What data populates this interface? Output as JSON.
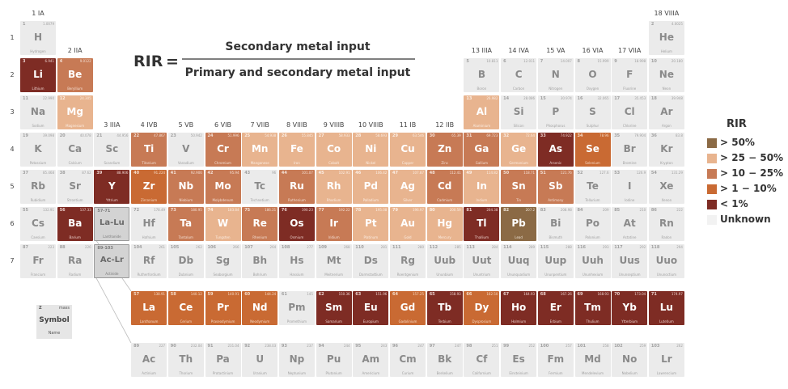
{
  "formula": {
    "lhs": "RIR",
    "eq": "=",
    "numerator": "Secondary metal input",
    "denominator": "Primary and secondary metal input"
  },
  "groups": [
    "1 IA",
    "2 IIA",
    "3 IIIA",
    "4 IVB",
    "5 VB",
    "6 VIB",
    "7 VIIB",
    "8 VIIIB",
    "9 VIIIB",
    "10 VIIIB",
    "11 IB",
    "12 IIB",
    "13 IIIA",
    "14 IVA",
    "15 VA",
    "16 VIA",
    "17 VIIA",
    "18 VIIIA"
  ],
  "periods": [
    "1",
    "2",
    "3",
    "4",
    "5",
    "6",
    "7"
  ],
  "legend": {
    "title": "RIR",
    "items": [
      {
        "label": "> 50%",
        "color": "#8b6a45"
      },
      {
        "label": "> 25 − 50%",
        "color": "#e8b48f"
      },
      {
        "label": "> 10 − 25%",
        "color": "#c77a55"
      },
      {
        "label": "> 1 − 10%",
        "color": "#c96a33"
      },
      {
        "label": "< 1%",
        "color": "#7e2c24"
      },
      {
        "label": "Unknown",
        "color": "#f2f2f2"
      }
    ]
  },
  "key": {
    "z": "Z",
    "m": "mass",
    "symbol": "Symbol",
    "name": "Name"
  },
  "elements": [
    [
      "1",
      "1.0079",
      "H",
      "Hydrogen",
      0,
      1,
      "u"
    ],
    [
      "2",
      "4.0025",
      "He",
      "Helium",
      17,
      1,
      "u"
    ],
    [
      "3",
      "6.941",
      "Li",
      "Lithium",
      0,
      2,
      "lt1"
    ],
    [
      "4",
      "9.0122",
      "Be",
      "Beryllium",
      1,
      2,
      "10-25"
    ],
    [
      "5",
      "10.811",
      "B",
      "Boron",
      12,
      2,
      "u"
    ],
    [
      "6",
      "12.011",
      "C",
      "Carbon",
      13,
      2,
      "u"
    ],
    [
      "7",
      "14.007",
      "N",
      "Nitrogen",
      14,
      2,
      "u"
    ],
    [
      "8",
      "15.999",
      "O",
      "Oxygen",
      15,
      2,
      "u"
    ],
    [
      "9",
      "18.998",
      "F",
      "Fluorine",
      16,
      2,
      "u"
    ],
    [
      "10",
      "20.180",
      "Ne",
      "Neon",
      17,
      2,
      "u"
    ],
    [
      "11",
      "22.990",
      "Na",
      "Sodium",
      0,
      3,
      "u"
    ],
    [
      "12",
      "24.305",
      "Mg",
      "Magnesium",
      1,
      3,
      "25-50"
    ],
    [
      "13",
      "26.982",
      "Al",
      "Aluminium",
      12,
      3,
      "25-50"
    ],
    [
      "14",
      "28.086",
      "Si",
      "Silicon",
      13,
      3,
      "u"
    ],
    [
      "15",
      "30.974",
      "P",
      "Phosphorus",
      14,
      3,
      "u"
    ],
    [
      "16",
      "32.065",
      "S",
      "Sulphur",
      15,
      3,
      "u"
    ],
    [
      "17",
      "35.453",
      "Cl",
      "Chlorine",
      16,
      3,
      "u"
    ],
    [
      "18",
      "39.948",
      "Ar",
      "Argon",
      17,
      3,
      "u"
    ],
    [
      "19",
      "39.098",
      "K",
      "Potassium",
      0,
      4,
      "u"
    ],
    [
      "20",
      "40.078",
      "Ca",
      "Calcium",
      1,
      4,
      "u"
    ],
    [
      "21",
      "44.956",
      "Sc",
      "Scandium",
      2,
      4,
      "u"
    ],
    [
      "22",
      "47.867",
      "Ti",
      "Titanium",
      3,
      4,
      "10-25"
    ],
    [
      "23",
      "50.942",
      "V",
      "Vanadium",
      4,
      4,
      "u"
    ],
    [
      "24",
      "51.996",
      "Cr",
      "Chromium",
      5,
      4,
      "10-25"
    ],
    [
      "25",
      "54.938",
      "Mn",
      "Manganese",
      6,
      4,
      "25-50"
    ],
    [
      "26",
      "55.845",
      "Fe",
      "Iron",
      7,
      4,
      "25-50"
    ],
    [
      "27",
      "58.933",
      "Co",
      "Cobalt",
      8,
      4,
      "25-50"
    ],
    [
      "28",
      "58.693",
      "Ni",
      "Nickel",
      9,
      4,
      "25-50"
    ],
    [
      "29",
      "63.546",
      "Cu",
      "Copper",
      10,
      4,
      "25-50"
    ],
    [
      "30",
      "65.39",
      "Zn",
      "Zinc",
      11,
      4,
      "10-25"
    ],
    [
      "31",
      "69.723",
      "Ga",
      "Gallium",
      12,
      4,
      "10-25"
    ],
    [
      "32",
      "72.64",
      "Ge",
      "Germanium",
      13,
      4,
      "25-50"
    ],
    [
      "33",
      "74.922",
      "As",
      "Arsenic",
      14,
      4,
      "lt1"
    ],
    [
      "34",
      "78.96",
      "Se",
      "Selenium",
      15,
      4,
      "1-10"
    ],
    [
      "35",
      "79.904",
      "Br",
      "Bromine",
      16,
      4,
      "u"
    ],
    [
      "36",
      "83.8",
      "Kr",
      "Krypton",
      17,
      4,
      "u"
    ],
    [
      "37",
      "85.468",
      "Rb",
      "Rubidium",
      0,
      5,
      "u"
    ],
    [
      "38",
      "87.62",
      "Sr",
      "Strontium",
      1,
      5,
      "u"
    ],
    [
      "39",
      "88.906",
      "Y",
      "Yttrium",
      2,
      5,
      "lt1"
    ],
    [
      "40",
      "91.224",
      "Zr",
      "Zirconium",
      3,
      5,
      "1-10"
    ],
    [
      "41",
      "92.906",
      "Nb",
      "Niobium",
      4,
      5,
      "10-25"
    ],
    [
      "42",
      "95.94",
      "Mo",
      "Molybdenum",
      5,
      5,
      "10-25"
    ],
    [
      "43",
      "96",
      "Tc",
      "Technetium",
      6,
      5,
      "u"
    ],
    [
      "44",
      "101.07",
      "Ru",
      "Ruthenium",
      7,
      5,
      "10-25"
    ],
    [
      "45",
      "102.91",
      "Rh",
      "Rhodium",
      8,
      5,
      "25-50"
    ],
    [
      "46",
      "106.42",
      "Pd",
      "Palladium",
      9,
      5,
      "25-50"
    ],
    [
      "47",
      "107.87",
      "Ag",
      "Silver",
      10,
      5,
      "25-50"
    ],
    [
      "48",
      "112.41",
      "Cd",
      "Cadmium",
      11,
      5,
      "10-25"
    ],
    [
      "49",
      "114.82",
      "In",
      "Indium",
      12,
      5,
      "25-50"
    ],
    [
      "50",
      "118.71",
      "Sn",
      "Tin",
      13,
      5,
      "10-25"
    ],
    [
      "51",
      "121.76",
      "Sb",
      "Antimony",
      14,
      5,
      "10-25"
    ],
    [
      "52",
      "127.6",
      "Te",
      "Tellurium",
      15,
      5,
      "u"
    ],
    [
      "53",
      "126.9",
      "I",
      "Iodine",
      16,
      5,
      "u"
    ],
    [
      "54",
      "131.29",
      "Xe",
      "Xenon",
      17,
      5,
      "u"
    ],
    [
      "55",
      "132.91",
      "Cs",
      "Caesium",
      0,
      6,
      "u"
    ],
    [
      "56",
      "137.33",
      "Ba",
      "Barium",
      1,
      6,
      "lt1"
    ],
    [
      "57-71",
      "",
      "La-Lu",
      "Lanthanide",
      2,
      6,
      "sel"
    ],
    [
      "72",
      "178.49",
      "Hf",
      "Hafnium",
      3,
      6,
      "u"
    ],
    [
      "73",
      "180.95",
      "Ta",
      "Tantalum",
      4,
      6,
      "10-25"
    ],
    [
      "74",
      "183.84",
      "W",
      "Tungsten",
      5,
      6,
      "25-50"
    ],
    [
      "75",
      "186.21",
      "Re",
      "Rhenium",
      6,
      6,
      "10-25"
    ],
    [
      "76",
      "190.23",
      "Os",
      "Osmium",
      7,
      6,
      "lt1"
    ],
    [
      "77",
      "192.22",
      "Ir",
      "Iridium",
      8,
      6,
      "10-25"
    ],
    [
      "78",
      "195.08",
      "Pt",
      "Platinum",
      9,
      6,
      "25-50"
    ],
    [
      "79",
      "196.97",
      "Au",
      "Gold",
      10,
      6,
      "25-50"
    ],
    [
      "80",
      "200.59",
      "Hg",
      "Mercury",
      11,
      6,
      "25-50"
    ],
    [
      "81",
      "204.38",
      "Tl",
      "Thallium",
      12,
      6,
      "lt1"
    ],
    [
      "82",
      "207.2",
      "Pb",
      "Lead",
      13,
      6,
      "gt50"
    ],
    [
      "83",
      "208.98",
      "Bi",
      "Bismuth",
      14,
      6,
      "u"
    ],
    [
      "84",
      "209",
      "Po",
      "Polonium",
      15,
      6,
      "u"
    ],
    [
      "85",
      "210",
      "At",
      "Astatine",
      16,
      6,
      "u"
    ],
    [
      "86",
      "222",
      "Rn",
      "Radon",
      17,
      6,
      "u"
    ],
    [
      "87",
      "223",
      "Fr",
      "Francium",
      0,
      7,
      "u"
    ],
    [
      "88",
      "226",
      "Ra",
      "Radium",
      1,
      7,
      "u"
    ],
    [
      "89-103",
      "",
      "Ac-Lr",
      "Actinide",
      2,
      7,
      "sel"
    ],
    [
      "104",
      "261",
      "Rf",
      "Rutherfordium",
      3,
      7,
      "u"
    ],
    [
      "105",
      "262",
      "Db",
      "Dubnium",
      4,
      7,
      "u"
    ],
    [
      "106",
      "266",
      "Sg",
      "Seaborgium",
      5,
      7,
      "u"
    ],
    [
      "107",
      "264",
      "Bh",
      "Bohrium",
      6,
      7,
      "u"
    ],
    [
      "108",
      "277",
      "Hs",
      "Hassium",
      7,
      7,
      "u"
    ],
    [
      "109",
      "268",
      "Mt",
      "Meitnerium",
      8,
      7,
      "u"
    ],
    [
      "110",
      "281",
      "Ds",
      "Darmstadtium",
      9,
      7,
      "u"
    ],
    [
      "111",
      "280",
      "Rg",
      "Roentgenium",
      10,
      7,
      "u"
    ],
    [
      "112",
      "285",
      "Uub",
      "Ununbium",
      11,
      7,
      "u"
    ],
    [
      "113",
      "284",
      "Uut",
      "Ununtrium",
      12,
      7,
      "u"
    ],
    [
      "114",
      "289",
      "Uuq",
      "Ununquadium",
      13,
      7,
      "u"
    ],
    [
      "115",
      "288",
      "Uup",
      "Ununpentium",
      14,
      7,
      "u"
    ],
    [
      "116",
      "293",
      "Uuh",
      "Ununhexium",
      15,
      7,
      "u"
    ],
    [
      "117",
      "292",
      "Uus",
      "Ununseptium",
      16,
      7,
      "u"
    ],
    [
      "118",
      "294",
      "Uuo",
      "Ununoctium",
      17,
      7,
      "u"
    ],
    [
      "57",
      "138.91",
      "La",
      "Lanthanum",
      3,
      8,
      "1-10"
    ],
    [
      "58",
      "140.12",
      "Ce",
      "Cerium",
      4,
      8,
      "1-10"
    ],
    [
      "59",
      "140.91",
      "Pr",
      "Praseodymium",
      5,
      8,
      "1-10"
    ],
    [
      "60",
      "144.24",
      "Nd",
      "Neodymium",
      6,
      8,
      "1-10"
    ],
    [
      "61",
      "145",
      "Pm",
      "Promethium",
      7,
      8,
      "u"
    ],
    [
      "62",
      "150.36",
      "Sm",
      "Samarium",
      8,
      8,
      "lt1"
    ],
    [
      "63",
      "151.96",
      "Eu",
      "Europium",
      9,
      8,
      "lt1"
    ],
    [
      "64",
      "157.25",
      "Gd",
      "Gadolinium",
      10,
      8,
      "1-10"
    ],
    [
      "65",
      "158.93",
      "Tb",
      "Terbium",
      11,
      8,
      "lt1"
    ],
    [
      "66",
      "162.50",
      "Dy",
      "Dysprosium",
      12,
      8,
      "1-10"
    ],
    [
      "67",
      "164.93",
      "Ho",
      "Holmium",
      13,
      8,
      "lt1"
    ],
    [
      "68",
      "167.26",
      "Er",
      "Erbium",
      14,
      8,
      "lt1"
    ],
    [
      "69",
      "168.93",
      "Tm",
      "Thulium",
      15,
      8,
      "lt1"
    ],
    [
      "70",
      "173.04",
      "Yb",
      "Ytterbium",
      16,
      8,
      "lt1"
    ],
    [
      "71",
      "174.97",
      "Lu",
      "Lutetium",
      17,
      8,
      "lt1"
    ],
    [
      "89",
      "227",
      "Ac",
      "Actinium",
      3,
      9,
      "u"
    ],
    [
      "90",
      "232.04",
      "Th",
      "Thorium",
      4,
      9,
      "u"
    ],
    [
      "91",
      "231.04",
      "Pa",
      "Protactinium",
      5,
      9,
      "u"
    ],
    [
      "92",
      "238.03",
      "U",
      "Uranium",
      6,
      9,
      "u"
    ],
    [
      "93",
      "237",
      "Np",
      "Neptunium",
      7,
      9,
      "u"
    ],
    [
      "94",
      "244",
      "Pu",
      "Plutonium",
      8,
      9,
      "u"
    ],
    [
      "95",
      "243",
      "Am",
      "Americium",
      9,
      9,
      "u"
    ],
    [
      "96",
      "247",
      "Cm",
      "Curium",
      10,
      9,
      "u"
    ],
    [
      "97",
      "247",
      "Bk",
      "Berkelium",
      11,
      9,
      "u"
    ],
    [
      "98",
      "251",
      "Cf",
      "Californium",
      12,
      9,
      "u"
    ],
    [
      "99",
      "252",
      "Es",
      "Einsteinium",
      13,
      9,
      "u"
    ],
    [
      "100",
      "257",
      "Fm",
      "Fermium",
      14,
      9,
      "u"
    ],
    [
      "101",
      "258",
      "Md",
      "Mendelevium",
      15,
      9,
      "u"
    ],
    [
      "102",
      "259",
      "No",
      "Nobelium",
      16,
      9,
      "u"
    ],
    [
      "103",
      "262",
      "Lr",
      "Lawrencium",
      17,
      9,
      "u"
    ]
  ]
}
